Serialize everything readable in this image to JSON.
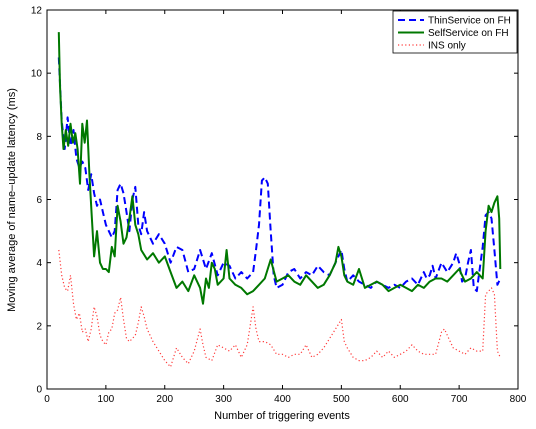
{
  "chart_data": {
    "type": "line",
    "title": "",
    "xlabel": "Number of triggering events",
    "ylabel": "Moving average of name–update latency (ms)",
    "xlim": [
      0,
      800
    ],
    "ylim": [
      0,
      12
    ],
    "xticks": [
      0,
      100,
      200,
      300,
      400,
      500,
      600,
      700,
      800
    ],
    "yticks": [
      0,
      2,
      4,
      6,
      8,
      10,
      12
    ],
    "grid": false,
    "legend_position": "top-right",
    "series": [
      {
        "name": "ThinService on FH",
        "color": "#0000ff",
        "style": "dashed",
        "points": [
          [
            20,
            10.5
          ],
          [
            25,
            8.5
          ],
          [
            30,
            7.6
          ],
          [
            35,
            8.6
          ],
          [
            40,
            7.7
          ],
          [
            45,
            8.2
          ],
          [
            50,
            7.3
          ],
          [
            55,
            7.0
          ],
          [
            60,
            7.2
          ],
          [
            65,
            7.0
          ],
          [
            70,
            6.3
          ],
          [
            75,
            6.8
          ],
          [
            80,
            6.2
          ],
          [
            85,
            5.8
          ],
          [
            90,
            6.0
          ],
          [
            95,
            5.6
          ],
          [
            100,
            5.2
          ],
          [
            110,
            4.8
          ],
          [
            115,
            5.0
          ],
          [
            120,
            6.3
          ],
          [
            125,
            6.5
          ],
          [
            130,
            6.2
          ],
          [
            135,
            5.6
          ],
          [
            140,
            5.0
          ],
          [
            145,
            6.0
          ],
          [
            150,
            6.4
          ],
          [
            155,
            5.2
          ],
          [
            160,
            4.9
          ],
          [
            165,
            5.6
          ],
          [
            170,
            5.0
          ],
          [
            180,
            4.6
          ],
          [
            190,
            4.9
          ],
          [
            200,
            4.6
          ],
          [
            210,
            4.0
          ],
          [
            220,
            4.5
          ],
          [
            230,
            4.4
          ],
          [
            240,
            3.7
          ],
          [
            250,
            3.8
          ],
          [
            260,
            4.4
          ],
          [
            270,
            3.8
          ],
          [
            280,
            4.3
          ],
          [
            290,
            3.6
          ],
          [
            300,
            4.0
          ],
          [
            310,
            3.9
          ],
          [
            320,
            3.5
          ],
          [
            330,
            3.7
          ],
          [
            340,
            3.5
          ],
          [
            350,
            3.7
          ],
          [
            355,
            4.4
          ],
          [
            360,
            5.2
          ],
          [
            365,
            6.6
          ],
          [
            370,
            6.7
          ],
          [
            375,
            6.5
          ],
          [
            380,
            5.0
          ],
          [
            385,
            3.6
          ],
          [
            390,
            3.2
          ],
          [
            400,
            3.3
          ],
          [
            410,
            3.7
          ],
          [
            420,
            3.8
          ],
          [
            430,
            3.5
          ],
          [
            440,
            3.7
          ],
          [
            450,
            3.6
          ],
          [
            460,
            3.9
          ],
          [
            470,
            3.7
          ],
          [
            480,
            3.6
          ],
          [
            490,
            4.0
          ],
          [
            500,
            4.4
          ],
          [
            505,
            3.8
          ],
          [
            510,
            3.4
          ],
          [
            520,
            3.6
          ],
          [
            530,
            3.4
          ],
          [
            540,
            3.3
          ],
          [
            550,
            3.2
          ],
          [
            560,
            3.4
          ],
          [
            570,
            3.3
          ],
          [
            580,
            3.2
          ],
          [
            590,
            3.3
          ],
          [
            600,
            3.2
          ],
          [
            610,
            3.4
          ],
          [
            620,
            3.5
          ],
          [
            630,
            3.3
          ],
          [
            640,
            3.7
          ],
          [
            645,
            3.5
          ],
          [
            650,
            3.6
          ],
          [
            655,
            3.9
          ],
          [
            660,
            3.5
          ],
          [
            670,
            4.0
          ],
          [
            680,
            3.7
          ],
          [
            690,
            4.0
          ],
          [
            695,
            4.3
          ],
          [
            700,
            4.0
          ],
          [
            705,
            3.4
          ],
          [
            710,
            3.5
          ],
          [
            715,
            4.0
          ],
          [
            720,
            4.4
          ],
          [
            725,
            3.2
          ],
          [
            730,
            3.1
          ],
          [
            735,
            3.8
          ],
          [
            740,
            4.5
          ],
          [
            745,
            5.5
          ],
          [
            750,
            5.6
          ],
          [
            755,
            5.4
          ],
          [
            760,
            4.4
          ],
          [
            765,
            3.3
          ],
          [
            770,
            3.5
          ]
        ]
      },
      {
        "name": "SelfService on FH",
        "color": "#007800",
        "style": "solid",
        "points": [
          [
            20,
            11.3
          ],
          [
            22,
            9.6
          ],
          [
            25,
            8.4
          ],
          [
            28,
            7.6
          ],
          [
            32,
            8.2
          ],
          [
            36,
            7.7
          ],
          [
            40,
            8.4
          ],
          [
            44,
            7.8
          ],
          [
            48,
            8.1
          ],
          [
            52,
            7.6
          ],
          [
            56,
            6.5
          ],
          [
            60,
            8.4
          ],
          [
            64,
            7.8
          ],
          [
            68,
            8.5
          ],
          [
            72,
            6.8
          ],
          [
            76,
            5.5
          ],
          [
            80,
            4.2
          ],
          [
            85,
            5.0
          ],
          [
            90,
            4.0
          ],
          [
            95,
            3.8
          ],
          [
            100,
            3.8
          ],
          [
            105,
            3.7
          ],
          [
            110,
            4.5
          ],
          [
            115,
            4.2
          ],
          [
            120,
            5.8
          ],
          [
            125,
            5.3
          ],
          [
            130,
            4.6
          ],
          [
            135,
            4.8
          ],
          [
            140,
            5.4
          ],
          [
            145,
            6.1
          ],
          [
            150,
            5.2
          ],
          [
            155,
            4.9
          ],
          [
            160,
            4.4
          ],
          [
            170,
            4.1
          ],
          [
            180,
            4.3
          ],
          [
            190,
            4.0
          ],
          [
            200,
            4.2
          ],
          [
            210,
            3.7
          ],
          [
            220,
            3.2
          ],
          [
            230,
            3.4
          ],
          [
            240,
            3.1
          ],
          [
            250,
            3.6
          ],
          [
            260,
            3.2
          ],
          [
            265,
            2.7
          ],
          [
            270,
            3.5
          ],
          [
            275,
            3.2
          ],
          [
            280,
            4.0
          ],
          [
            285,
            3.8
          ],
          [
            290,
            3.3
          ],
          [
            300,
            3.5
          ],
          [
            305,
            4.4
          ],
          [
            310,
            3.5
          ],
          [
            320,
            3.3
          ],
          [
            330,
            3.2
          ],
          [
            340,
            3.0
          ],
          [
            350,
            3.1
          ],
          [
            360,
            3.3
          ],
          [
            370,
            3.5
          ],
          [
            380,
            4.1
          ],
          [
            390,
            3.4
          ],
          [
            400,
            3.5
          ],
          [
            410,
            3.6
          ],
          [
            420,
            3.4
          ],
          [
            430,
            3.3
          ],
          [
            440,
            3.6
          ],
          [
            450,
            3.4
          ],
          [
            460,
            3.2
          ],
          [
            470,
            3.3
          ],
          [
            480,
            3.6
          ],
          [
            490,
            4.0
          ],
          [
            495,
            4.5
          ],
          [
            500,
            4.2
          ],
          [
            505,
            3.6
          ],
          [
            510,
            3.4
          ],
          [
            520,
            3.3
          ],
          [
            530,
            3.8
          ],
          [
            540,
            3.2
          ],
          [
            550,
            3.3
          ],
          [
            560,
            3.4
          ],
          [
            570,
            3.3
          ],
          [
            580,
            3.1
          ],
          [
            590,
            3.2
          ],
          [
            600,
            3.3
          ],
          [
            610,
            3.2
          ],
          [
            620,
            3.1
          ],
          [
            630,
            3.3
          ],
          [
            640,
            3.2
          ],
          [
            650,
            3.4
          ],
          [
            660,
            3.5
          ],
          [
            670,
            3.5
          ],
          [
            680,
            3.4
          ],
          [
            690,
            3.6
          ],
          [
            700,
            3.8
          ],
          [
            710,
            3.4
          ],
          [
            720,
            3.5
          ],
          [
            730,
            3.7
          ],
          [
            740,
            3.5
          ],
          [
            745,
            5.0
          ],
          [
            750,
            5.8
          ],
          [
            755,
            5.6
          ],
          [
            760,
            5.9
          ],
          [
            765,
            6.1
          ],
          [
            768,
            5.4
          ],
          [
            770,
            3.8
          ]
        ]
      },
      {
        "name": "INS only",
        "color": "#ff3a3a",
        "style": "dotted",
        "points": [
          [
            20,
            4.4
          ],
          [
            25,
            3.6
          ],
          [
            30,
            3.2
          ],
          [
            35,
            3.1
          ],
          [
            40,
            3.6
          ],
          [
            45,
            2.7
          ],
          [
            50,
            2.2
          ],
          [
            55,
            2.4
          ],
          [
            60,
            1.8
          ],
          [
            65,
            1.9
          ],
          [
            70,
            1.5
          ],
          [
            75,
            1.9
          ],
          [
            80,
            2.6
          ],
          [
            85,
            2.3
          ],
          [
            90,
            1.7
          ],
          [
            95,
            1.5
          ],
          [
            100,
            1.4
          ],
          [
            105,
            1.8
          ],
          [
            110,
            1.9
          ],
          [
            115,
            2.4
          ],
          [
            120,
            2.5
          ],
          [
            125,
            2.9
          ],
          [
            130,
            2.2
          ],
          [
            135,
            1.6
          ],
          [
            140,
            1.5
          ],
          [
            145,
            1.6
          ],
          [
            150,
            1.7
          ],
          [
            155,
            2.1
          ],
          [
            160,
            2.6
          ],
          [
            165,
            2.3
          ],
          [
            170,
            1.9
          ],
          [
            180,
            1.5
          ],
          [
            190,
            1.2
          ],
          [
            200,
            0.9
          ],
          [
            210,
            0.7
          ],
          [
            220,
            1.3
          ],
          [
            230,
            1.0
          ],
          [
            240,
            0.8
          ],
          [
            250,
            1.2
          ],
          [
            260,
            1.9
          ],
          [
            265,
            1.4
          ],
          [
            270,
            1.0
          ],
          [
            280,
            0.9
          ],
          [
            290,
            1.4
          ],
          [
            300,
            1.3
          ],
          [
            310,
            1.2
          ],
          [
            320,
            1.4
          ],
          [
            330,
            1.0
          ],
          [
            340,
            1.4
          ],
          [
            350,
            2.6
          ],
          [
            355,
            1.9
          ],
          [
            360,
            1.5
          ],
          [
            370,
            1.5
          ],
          [
            380,
            1.4
          ],
          [
            390,
            1.1
          ],
          [
            400,
            1.1
          ],
          [
            410,
            1.0
          ],
          [
            420,
            1.1
          ],
          [
            430,
            1.1
          ],
          [
            440,
            1.4
          ],
          [
            450,
            1.0
          ],
          [
            460,
            1.1
          ],
          [
            470,
            1.3
          ],
          [
            480,
            1.6
          ],
          [
            490,
            1.9
          ],
          [
            500,
            2.2
          ],
          [
            505,
            1.5
          ],
          [
            510,
            1.3
          ],
          [
            520,
            1.0
          ],
          [
            530,
            0.9
          ],
          [
            540,
            0.9
          ],
          [
            550,
            1.0
          ],
          [
            560,
            1.2
          ],
          [
            570,
            1.0
          ],
          [
            580,
            1.2
          ],
          [
            590,
            1.0
          ],
          [
            600,
            1.1
          ],
          [
            610,
            1.2
          ],
          [
            620,
            1.4
          ],
          [
            630,
            1.2
          ],
          [
            640,
            1.1
          ],
          [
            650,
            1.1
          ],
          [
            660,
            1.1
          ],
          [
            670,
            1.8
          ],
          [
            675,
            1.9
          ],
          [
            680,
            1.7
          ],
          [
            690,
            1.3
          ],
          [
            700,
            1.2
          ],
          [
            710,
            1.1
          ],
          [
            720,
            1.3
          ],
          [
            730,
            1.2
          ],
          [
            740,
            1.2
          ],
          [
            745,
            3.0
          ],
          [
            750,
            3.1
          ],
          [
            755,
            3.2
          ],
          [
            760,
            3.0
          ],
          [
            765,
            1.2
          ],
          [
            770,
            1.0
          ]
        ]
      }
    ]
  }
}
